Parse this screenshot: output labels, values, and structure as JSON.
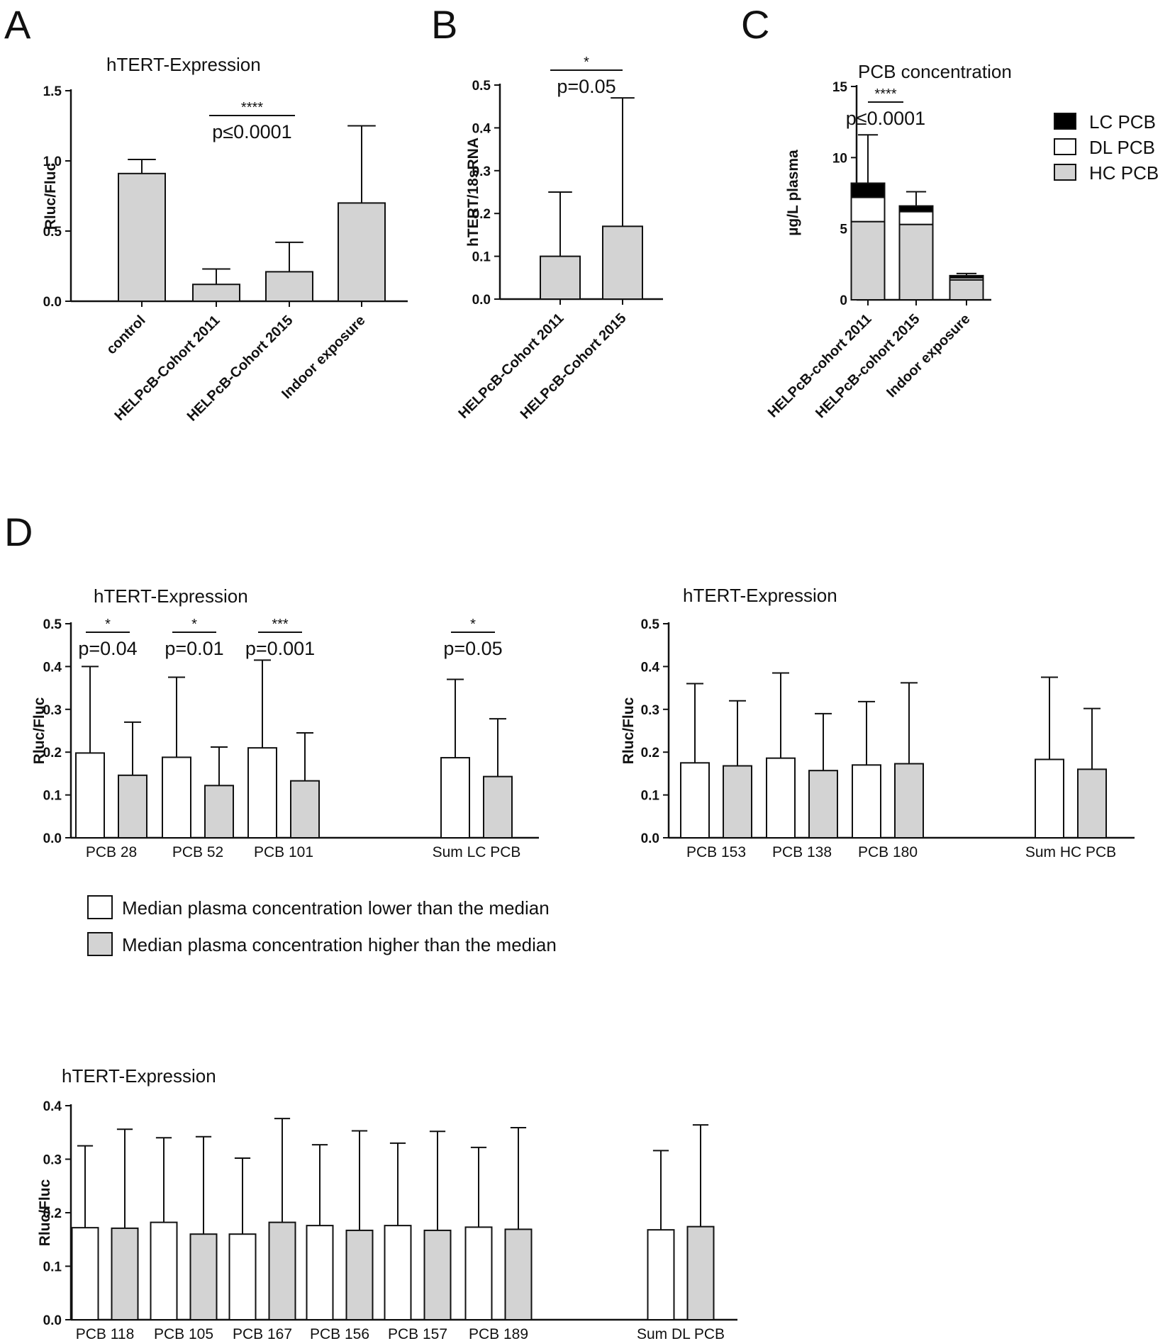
{
  "panel_labels": {
    "A": "A",
    "B": "B",
    "C": "C",
    "D": "D"
  },
  "legend_c": {
    "items": [
      "LC PCB",
      "DL PCB",
      "HC PCB"
    ]
  },
  "legend_d": {
    "items": [
      "Median plasma concentration lower than the median",
      "Median plasma concentration higher than the median"
    ]
  },
  "colors": {
    "gray": "#d3d3d3",
    "white": "#ffffff",
    "black": "#000000",
    "axis": "#111111"
  },
  "chart_data": [
    {
      "id": "A",
      "type": "bar",
      "title": "hTERT-Expression",
      "xlabel": "",
      "ylabel": "Rluc/Fluc",
      "ylim": [
        0,
        1.5
      ],
      "yticks": [
        0.0,
        0.5,
        1.0,
        1.5
      ],
      "ytick_labels": [
        "0.0",
        "0.5",
        "1.0",
        "1.5"
      ],
      "categories": [
        "control",
        "HELPcB-Cohort  2011",
        "HELPcB-Cohort  2015",
        "Indoor exposure"
      ],
      "values": [
        0.91,
        0.12,
        0.21,
        0.7
      ],
      "errors": [
        1.01,
        0.23,
        0.42,
        1.25
      ],
      "annotations": [
        {
          "stars": "****",
          "p": "p≤0.0001",
          "from": 1,
          "to": 2
        }
      ]
    },
    {
      "id": "B",
      "type": "bar",
      "title": "",
      "xlabel": "",
      "ylabel": "hTERT/18sRNA",
      "ylim": [
        0,
        0.5
      ],
      "yticks": [
        0.0,
        0.1,
        0.2,
        0.3,
        0.4,
        0.5
      ],
      "ytick_labels": [
        "0.0",
        "0.1",
        "0.2",
        "0.3",
        "0.4",
        "0.5"
      ],
      "categories": [
        "HELPcB-Cohort  2011",
        "HELPcB-Cohort  2015"
      ],
      "values": [
        0.1,
        0.17
      ],
      "errors": [
        0.25,
        0.47
      ],
      "annotations": [
        {
          "stars": "*",
          "p": "p=0.05",
          "from": 0,
          "to": 1
        }
      ]
    },
    {
      "id": "C",
      "type": "bar",
      "stacked": true,
      "title": "PCB concentration",
      "xlabel": "",
      "ylabel": "µg/L plasma",
      "ylim": [
        0,
        15
      ],
      "yticks": [
        0,
        5,
        10,
        15
      ],
      "ytick_labels": [
        "0",
        "5",
        "10",
        "15"
      ],
      "categories": [
        "HELPcB-cohort 2011",
        "HELPcB-cohort 2015",
        "Indoor exposure"
      ],
      "series": [
        {
          "name": "HC PCB",
          "values": [
            5.5,
            5.3,
            1.4
          ]
        },
        {
          "name": "DL PCB",
          "values": [
            1.7,
            0.9,
            0.15
          ]
        },
        {
          "name": "LC PCB",
          "values": [
            1.0,
            0.4,
            0.15
          ]
        }
      ],
      "errors": [
        11.6,
        7.6,
        1.85
      ],
      "annotations": [
        {
          "stars": "****",
          "p": "p≤0.0001",
          "from": 0,
          "to": 1
        }
      ]
    },
    {
      "id": "D1",
      "type": "bar",
      "title": "hTERT-Expression",
      "xlabel": "",
      "ylabel": "Rluc/Fluc",
      "ylim": [
        0,
        0.5
      ],
      "yticks": [
        0.0,
        0.1,
        0.2,
        0.3,
        0.4,
        0.5
      ],
      "ytick_labels": [
        "0.0",
        "0.1",
        "0.2",
        "0.3",
        "0.4",
        "0.5"
      ],
      "categories": [
        "PCB 28",
        "PCB 52",
        "PCB 101",
        "Sum LC PCB"
      ],
      "series": [
        {
          "name": "lower than median",
          "values": [
            0.198,
            0.188,
            0.21,
            0.187
          ],
          "errors": [
            0.4,
            0.375,
            0.415,
            0.37
          ]
        },
        {
          "name": "higher than median",
          "values": [
            0.146,
            0.122,
            0.133,
            0.143
          ],
          "errors": [
            0.27,
            0.212,
            0.245,
            0.278
          ]
        }
      ],
      "annotations": [
        {
          "stars": "*",
          "p": "p=0.04",
          "group": 0
        },
        {
          "stars": "*",
          "p": "p=0.01",
          "group": 1
        },
        {
          "stars": "***",
          "p": "p=0.001",
          "group": 2
        },
        {
          "stars": "*",
          "p": "p=0.05",
          "group": 3
        }
      ]
    },
    {
      "id": "D2",
      "type": "bar",
      "title": "hTERT-Expression",
      "xlabel": "",
      "ylabel": "Rluc/Fluc",
      "ylim": [
        0,
        0.5
      ],
      "yticks": [
        0.0,
        0.1,
        0.2,
        0.3,
        0.4,
        0.5
      ],
      "ytick_labels": [
        "0.0",
        "0.1",
        "0.2",
        "0.3",
        "0.4",
        "0.5"
      ],
      "categories": [
        "PCB 153",
        "PCB 138",
        "PCB 180",
        "Sum HC PCB"
      ],
      "series": [
        {
          "name": "lower than median",
          "values": [
            0.175,
            0.186,
            0.17,
            0.183
          ],
          "errors": [
            0.36,
            0.385,
            0.318,
            0.375
          ]
        },
        {
          "name": "higher than median",
          "values": [
            0.168,
            0.157,
            0.173,
            0.16
          ],
          "errors": [
            0.32,
            0.29,
            0.362,
            0.302
          ]
        }
      ]
    },
    {
      "id": "D3",
      "type": "bar",
      "title": "hTERT-Expression",
      "xlabel": "",
      "ylabel": "Rluc/Fluc",
      "ylim": [
        0,
        0.4
      ],
      "yticks": [
        0.0,
        0.1,
        0.2,
        0.3,
        0.4
      ],
      "ytick_labels": [
        "0.0",
        "0.1",
        "0.2",
        "0.3",
        "0.4"
      ],
      "categories": [
        "PCB 118",
        "PCB 105",
        "PCB 167",
        "PCB 156",
        "PCB 157",
        "PCB 189",
        "Sum DL PCB"
      ],
      "series": [
        {
          "name": "lower than median",
          "values": [
            0.172,
            0.182,
            0.16,
            0.176,
            0.176,
            0.173,
            0.168
          ],
          "errors": [
            0.325,
            0.34,
            0.302,
            0.327,
            0.33,
            0.322,
            0.316
          ]
        },
        {
          "name": "higher than median",
          "values": [
            0.171,
            0.16,
            0.182,
            0.167,
            0.167,
            0.169,
            0.174
          ],
          "errors": [
            0.356,
            0.342,
            0.376,
            0.353,
            0.352,
            0.359,
            0.364
          ]
        }
      ]
    }
  ]
}
